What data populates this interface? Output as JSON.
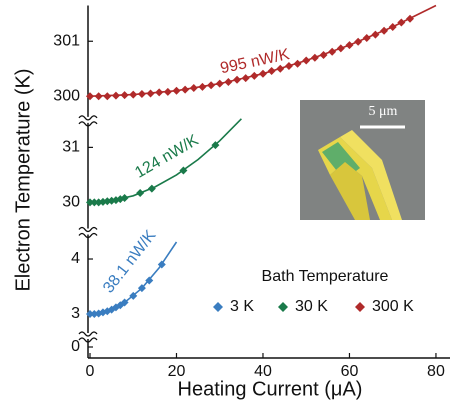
{
  "chart_data": {
    "type": "line",
    "xlabel": "Heating Current (μA)",
    "ylabel": "Electron Temperature (K)",
    "xlim": [
      0,
      82
    ],
    "xticks": [
      0,
      20,
      40,
      60,
      80
    ],
    "y_segments": [
      {
        "ylim": [
          -0.2,
          0.2
        ],
        "yticks": [
          0
        ]
      },
      {
        "ylim": [
          2.6,
          4.5
        ],
        "yticks": [
          3,
          4
        ]
      },
      {
        "ylim": [
          29.47,
          31.5
        ],
        "yticks": [
          30,
          31
        ]
      },
      {
        "ylim": [
          299.57,
          301.65
        ],
        "yticks": [
          300,
          301
        ]
      }
    ],
    "legend_title": "Bath Temperature",
    "inset_label": "5 μm",
    "series": [
      {
        "name": "3 K",
        "color": "#3a7dc0",
        "fit_label": "38.1 nW/K",
        "x": [
          0,
          1,
          2,
          3,
          4,
          5,
          6,
          7,
          8,
          10,
          12,
          13.7,
          16.6
        ],
        "values": [
          3.0,
          3.0,
          3.01,
          3.03,
          3.05,
          3.08,
          3.12,
          3.16,
          3.21,
          3.33,
          3.47,
          3.61,
          3.9
        ],
        "fit_x": [
          0,
          4,
          8,
          12,
          16,
          20
        ],
        "fit_values": [
          3.0,
          3.05,
          3.21,
          3.47,
          3.84,
          4.31
        ]
      },
      {
        "name": "30 K",
        "color": "#1a7a4a",
        "fit_label": "124 nW/K",
        "x": [
          0,
          1,
          2,
          3,
          4,
          5,
          6,
          7,
          8,
          11.6,
          14.3,
          21.6,
          29
        ],
        "values": [
          30.0,
          30.0,
          30.0,
          30.01,
          30.02,
          30.03,
          30.04,
          30.06,
          30.08,
          30.17,
          30.25,
          30.58,
          31.04
        ],
        "fit_x": [
          0,
          5,
          10,
          15,
          20,
          25,
          30,
          35
        ],
        "fit_values": [
          30.0,
          30.03,
          30.12,
          30.28,
          30.5,
          30.78,
          31.12,
          31.52
        ]
      },
      {
        "name": "300 K",
        "color": "#b02a2a",
        "fit_label": "995 nW/K",
        "x": [
          0,
          2,
          4,
          6,
          8,
          10,
          12,
          14,
          16,
          18,
          20,
          22,
          24,
          26,
          28,
          30,
          32,
          34,
          36,
          38,
          40,
          42,
          44,
          46,
          48,
          50,
          52,
          54,
          56,
          58,
          60,
          62,
          64,
          66,
          68,
          70,
          72,
          74
        ],
        "values": [
          300.0,
          300.0,
          300.0,
          300.01,
          300.02,
          300.03,
          300.04,
          300.05,
          300.07,
          300.08,
          300.1,
          300.12,
          300.15,
          300.17,
          300.2,
          300.23,
          300.26,
          300.3,
          300.33,
          300.37,
          300.41,
          300.46,
          300.5,
          300.55,
          300.59,
          300.65,
          300.7,
          300.75,
          300.81,
          300.87,
          300.93,
          300.99,
          301.06,
          301.12,
          301.19,
          301.26,
          301.34,
          301.41
        ],
        "fit_x": [
          0,
          10,
          20,
          30,
          40,
          50,
          60,
          70,
          80
        ],
        "fit_values": [
          300.0,
          300.03,
          300.1,
          300.23,
          300.41,
          300.65,
          300.93,
          301.26,
          301.65
        ]
      }
    ]
  }
}
